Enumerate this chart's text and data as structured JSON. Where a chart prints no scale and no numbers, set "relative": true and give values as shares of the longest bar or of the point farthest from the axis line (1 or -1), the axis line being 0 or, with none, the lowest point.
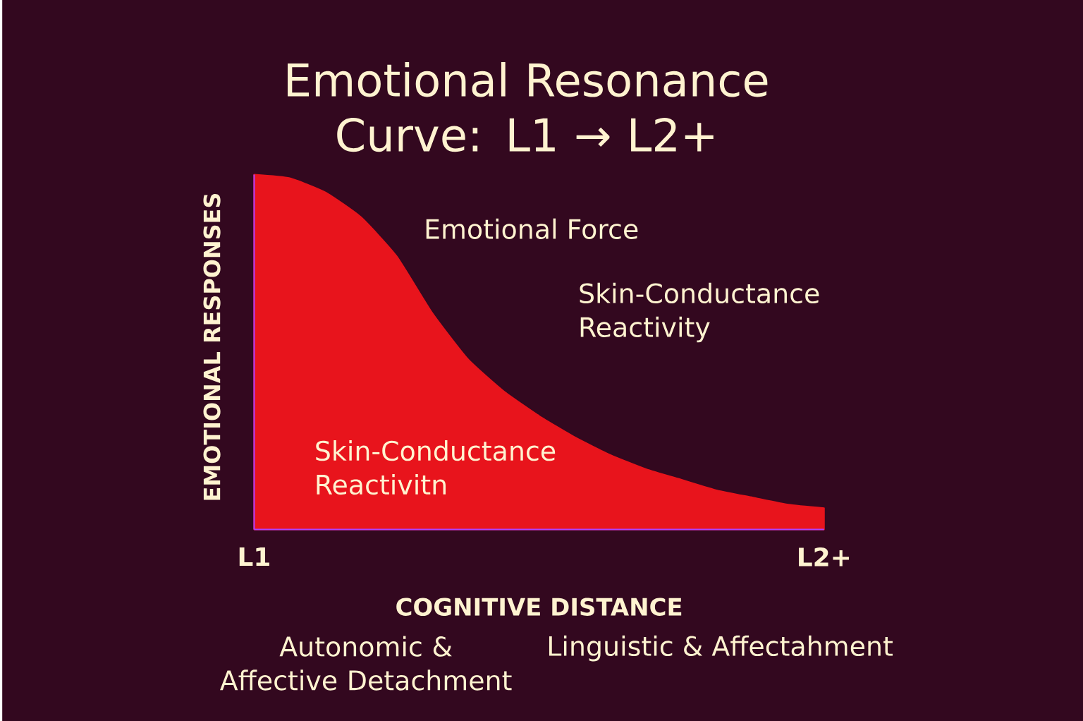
{
  "chart_data": {
    "type": "area",
    "title": "Emotional Resonance Curve: L1 → L2+",
    "xlabel": "COGNITIVE DISTANCE",
    "ylabel": "EMOTIONAL RESPONSES",
    "relative": true,
    "categories": [
      "L1",
      null,
      null,
      null,
      null,
      null,
      null,
      null,
      null,
      null,
      null,
      null,
      null,
      null,
      null,
      null,
      "L2+"
    ],
    "series": [
      {
        "color": "#e8141c",
        "values": [
          1,
          0.99,
          0.95,
          0.88,
          0.77,
          0.61,
          0.48,
          0.39,
          0.32,
          0.26,
          0.21,
          0.17,
          0.14,
          0.11,
          0.09,
          0.07,
          0.06
        ]
      }
    ],
    "annotations": [
      "Emotional Force",
      "Skin-Conductance Reactivity",
      "Skin-Conductance Reactivitn",
      "Autonomic & Affective Detachment",
      "Linguistic & Affectahment"
    ]
  }
}
